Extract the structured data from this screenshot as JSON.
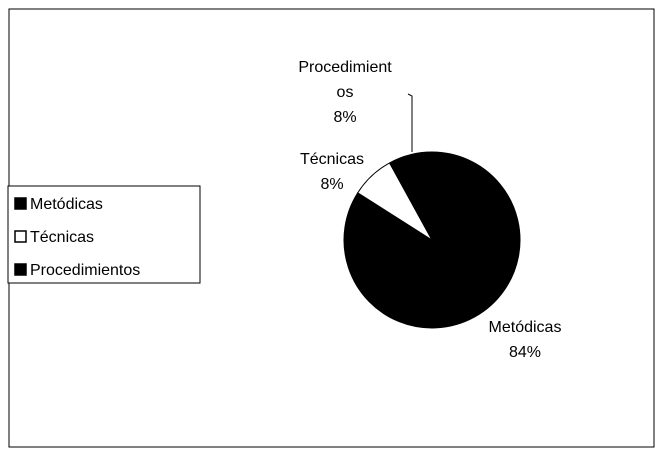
{
  "chart_data": {
    "type": "pie",
    "categories": [
      "Metódicas",
      "Técnicas",
      "Procedimientos"
    ],
    "values": [
      84,
      8,
      8
    ],
    "value_labels": [
      "84%",
      "8%",
      "8%"
    ],
    "colors": [
      "#000000",
      "#ffffff",
      "#000000"
    ],
    "legend": "left"
  }
}
